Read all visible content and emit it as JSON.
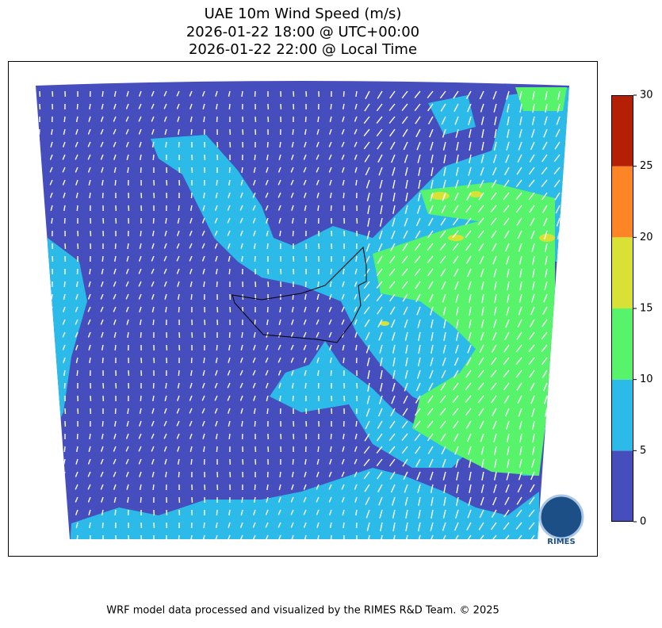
{
  "title": [
    "UAE 10m Wind Speed (m/s)",
    "2026-01-22 18:00 @ UTC+00:00",
    "2026-01-22 22:00 @ Local Time"
  ],
  "colorbar": {
    "ticks": [
      0,
      5,
      10,
      15,
      20,
      25,
      30
    ],
    "colors": [
      "#464dbd",
      "#2cbbe8",
      "#57f36b",
      "#d8e236",
      "#fd8526",
      "#b51f05"
    ]
  },
  "logo": "RIMES",
  "footer": "WRF model data processed and visualized by the RIMES R&D Team. © 2025"
}
